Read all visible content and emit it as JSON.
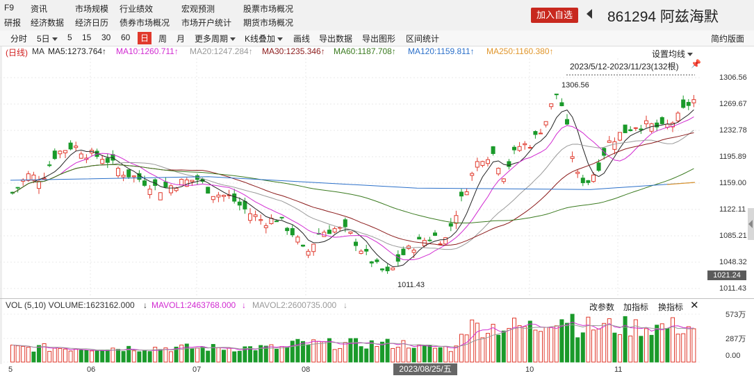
{
  "nav": {
    "row1": [
      "F9",
      "资讯",
      "市场规模",
      "行业绩效",
      "宏观预测",
      "股票市场概况"
    ],
    "row2": [
      "研报",
      "经济数据",
      "经济日历",
      "债券市场概况",
      "市场开户统计",
      "期货市场概况"
    ]
  },
  "header": {
    "add_watch": "加入自选",
    "code": "861294",
    "name": "阿兹海默"
  },
  "toolbar": {
    "items": [
      "分时",
      "5日",
      "5",
      "15",
      "30",
      "60",
      "日",
      "周",
      "月",
      "更多周期",
      "K线叠加",
      "画线",
      "导出数据",
      "导出图形",
      "区间统计"
    ],
    "active": "日",
    "simple_layout": "简约版面"
  },
  "ma": {
    "label": "(日线)",
    "ma_prefix": "MA",
    "ma5": "MA5:1273.764↑",
    "ma10": "MA10:1260.711↑",
    "ma20": "MA20:1247.284↑",
    "ma30": "MA30:1235.346↑",
    "ma60": "MA60:1187.708↑",
    "ma120": "MA120:1159.811↑",
    "ma250": "MA250:1160.380↑"
  },
  "colors": {
    "up": "#e0392c",
    "down": "#1a9a2a",
    "ma5": "#222222",
    "ma10": "#d12ad1",
    "ma20": "#999999",
    "ma30": "#8b1a1a",
    "ma60": "#3a7a1f",
    "ma120": "#2a6fc9",
    "ma250": "#e0952a"
  },
  "chart": {
    "settings": "设置均线",
    "range": "2023/5/12-2023/11/23(132根)",
    "high_label": "1306.56",
    "low_label": "1011.43",
    "y_ticks": [
      "1306.56",
      "1269.67",
      "1232.78",
      "1195.89",
      "1159.00",
      "1122.11",
      "1085.21",
      "1048.32",
      "1011.43"
    ],
    "current_price": "1021.24"
  },
  "chart_data": {
    "type": "candlestick",
    "ylim": [
      1011.43,
      1306.56
    ],
    "x_ticks": [
      "5",
      "06",
      "07",
      "08",
      "10",
      "11"
    ],
    "selected_date": "2023/08/25/五"
  },
  "volume": {
    "label": "VOL (5,10) VOLUME:1623162.000",
    "mavol1": "MAVOL1:2463768.000",
    "mavol2": "MAVOL2:2600735.000",
    "edit_params": "改参数",
    "add_indicator": "加指标",
    "swap_indicator": "换指标",
    "ticks": [
      "573万",
      "287万",
      "0.00"
    ]
  }
}
